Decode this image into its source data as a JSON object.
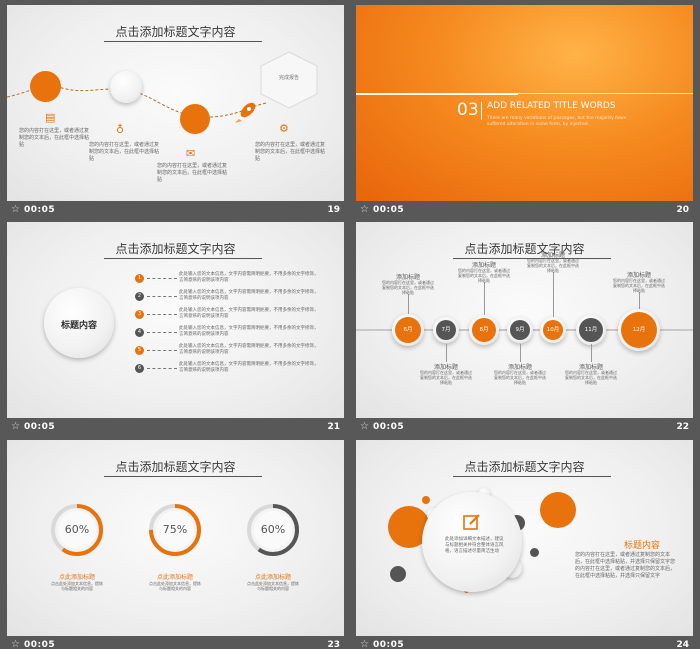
{
  "footer": {
    "time": "00:05",
    "star": "☆"
  },
  "slide_title": "点击添加标题文字内容",
  "body_text": "您的内容打在这里，或者通过复制您的文本后，在此框中选择粘贴",
  "s19": {
    "num": "19",
    "hex_label": "完成报告",
    "items": [
      "您的内容打在这里，或者通过复制您的文本后，在此框中选择粘贴",
      "您的内容打在这里，或者通过复制您的文本后，在此框中选择粘贴",
      "您的内容打在这里，或者通过复制您的文本后，在此框中选择粘贴",
      "您的内容打在这里，或者通过复制您的文本后，在此框中选择粘贴"
    ]
  },
  "s20": {
    "num": "20",
    "index": "03",
    "heading": "ADD RELATED TITLE WORDS",
    "sub": "There are many variations of passages, but the majority have suffered alteration in some form, by injected."
  },
  "s21": {
    "num": "21",
    "center": "标题内容",
    "rows": [
      {
        "n": "1",
        "text": "此处输入您的文本信息，文字内容需简明扼要，不用多余的文字修饰，言简意赅的说明该项内容",
        "color": "#e8720c"
      },
      {
        "n": "2",
        "text": "此处输入您的文本信息，文字内容需简明扼要，不用多余的文字修饰，言简意赅的说明该项内容",
        "color": "#555555"
      },
      {
        "n": "3",
        "text": "此处输入您的文本信息，文字内容需简明扼要，不用多余的文字修饰，言简意赅的说明该项内容",
        "color": "#e8720c"
      },
      {
        "n": "4",
        "text": "此处输入您的文本信息，文字内容需简明扼要，不用多余的文字修饰，言简意赅的说明该项内容",
        "color": "#555555"
      },
      {
        "n": "5",
        "text": "此处输入您的文本信息，文字内容需简明扼要，不用多余的文字修饰，言简意赅的说明该项内容",
        "color": "#e8720c"
      },
      {
        "n": "6",
        "text": "此处输入您的文本信息，文字内容需简明扼要，不用多余的文字修饰，言简意赅的说明该项内容",
        "color": "#555555"
      }
    ]
  },
  "s22": {
    "num": "22",
    "months": [
      "6月",
      "7月",
      "8月",
      "9月",
      "10月",
      "11月",
      "12月"
    ],
    "item_title": "添加标题",
    "item_text": "您的内容打在这里，或者通过复制您的文本后，在此框中选择粘贴"
  },
  "s23": {
    "num": "23",
    "gauges": [
      {
        "label": "60%",
        "value": 60,
        "color": "#e8720c",
        "title": "点此添加标题",
        "text": "点击此处添加文本信息，提炼与标题相关的内容"
      },
      {
        "label": "75%",
        "value": 75,
        "color": "#e8720c",
        "title": "点此添加标题",
        "text": "点击此处添加文本信息，提炼与标题相关的内容"
      },
      {
        "label": "60%",
        "value": 60,
        "color": "#555555",
        "title": "点此添加标题",
        "text": "点击此处添加文本信息，提炼与标题相关的内容"
      }
    ]
  },
  "s24": {
    "num": "24",
    "center_text": "此处添加详细文本描述，建议与标题相关并符合整体语言风格，语言描述尽量简洁生动",
    "side_title": "标题内容",
    "side_text": "您的内容打在这里，或者通过复制您的文本后，在此框中选择粘贴，并选择只保留文字您的内容打在这里，或者通过复制您的文本后，在此框中选择粘贴，并选择只保留文字"
  },
  "colors": {
    "accent": "#e8720c",
    "dark": "#555555",
    "frame": "#585858"
  }
}
